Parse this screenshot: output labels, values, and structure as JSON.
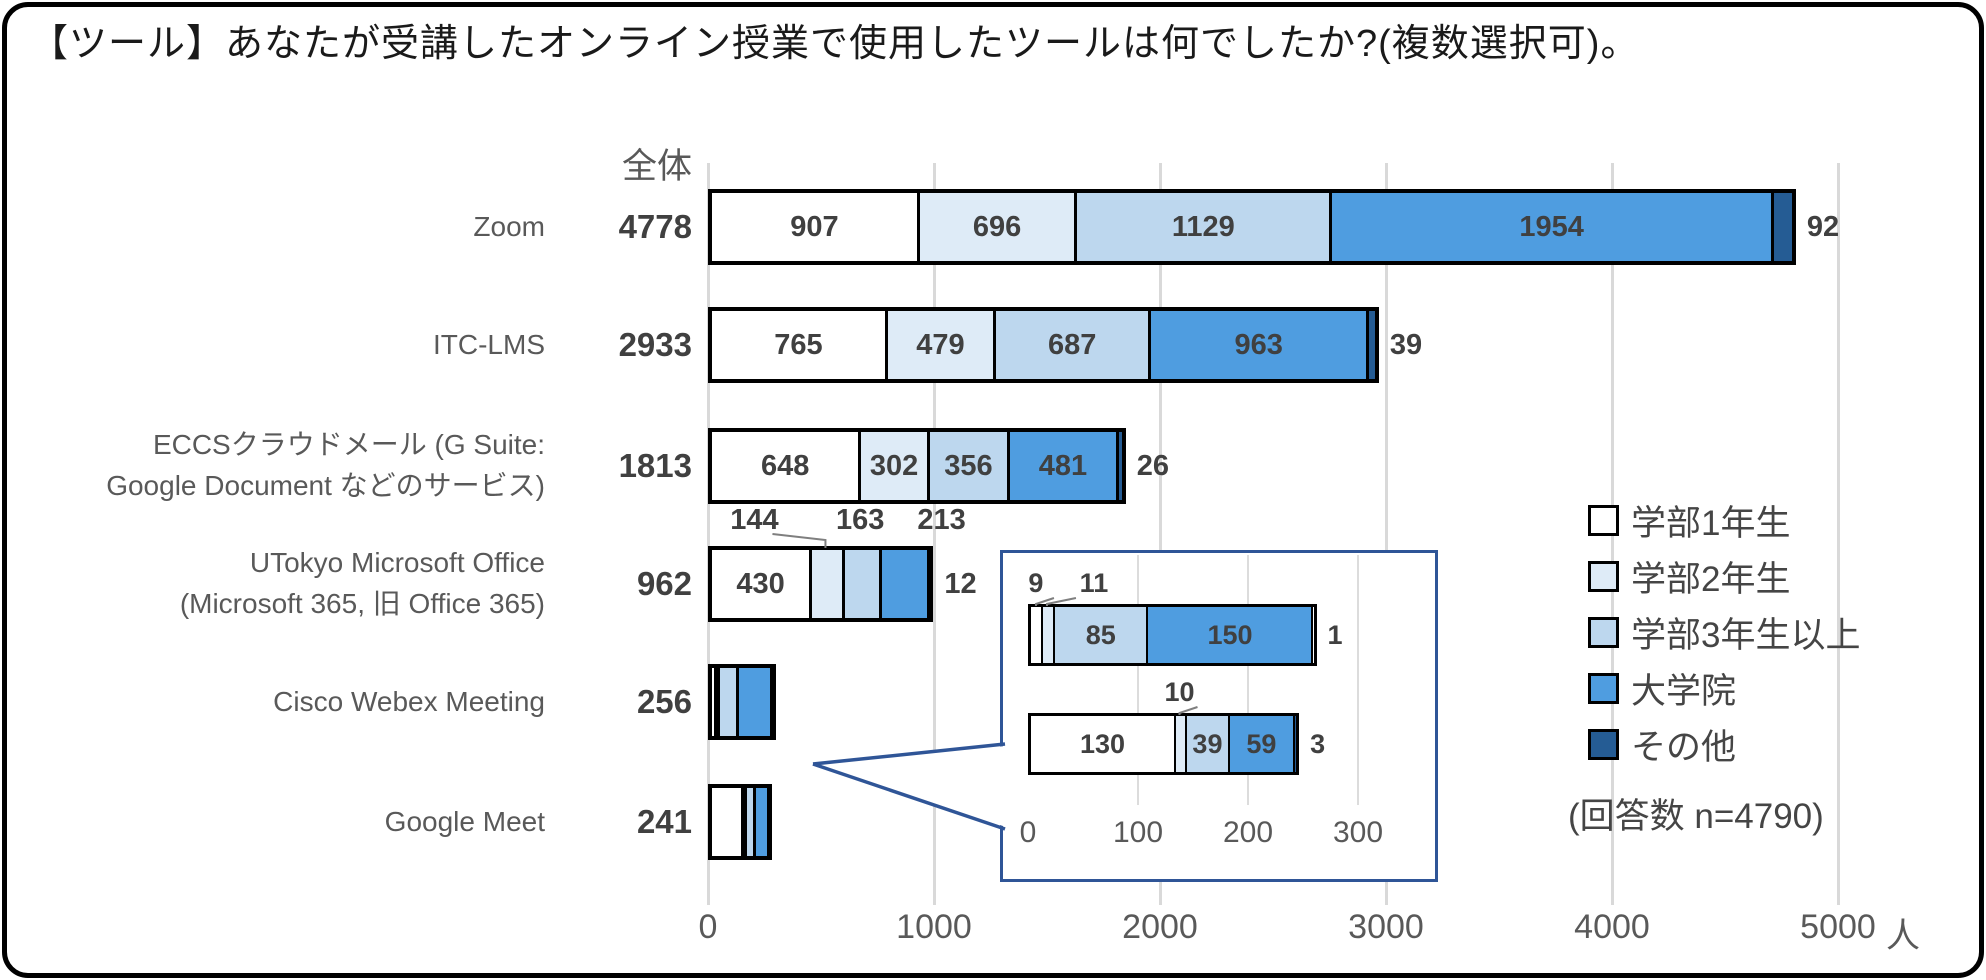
{
  "title": "【ツール】あなたが受講したオンライン授業で使用したツールは何でしたか?(複数選択可)。",
  "colors": {
    "series": [
      "#FFFFFF",
      "#DEEBF7",
      "#BDD7EE",
      "#4F9DE0",
      "#255C94"
    ],
    "segment_border": "#000000",
    "gridline": "#D9D9D9",
    "axis_text": "#595959",
    "value_text": "#404040",
    "inset_border": "#2F5597",
    "background": "#FFFFFF"
  },
  "chart_data": {
    "type": "bar",
    "stacked": true,
    "orientation": "horizontal",
    "title": "【ツール】あなたが受講したオンライン授業で使用したツールは何でしたか?(複数選択可)。",
    "total_header": "全体",
    "unit": "人",
    "xlim": [
      0,
      5000
    ],
    "x_ticks": [
      0,
      1000,
      2000,
      3000,
      4000,
      5000
    ],
    "grid": true,
    "series_names": [
      "学部1年生",
      "学部2年生",
      "学部3年生以上",
      "大学院",
      "その他"
    ],
    "rows": [
      {
        "key": "zoom",
        "label_lines": [
          "Zoom"
        ],
        "total": 4778,
        "values": [
          907,
          696,
          1129,
          1954,
          92
        ],
        "placements": [
          "in",
          "in",
          "in",
          "in",
          "out"
        ],
        "dx": [
          0,
          0,
          0,
          0,
          0
        ],
        "leaders": [
          false,
          false,
          false,
          false,
          false
        ]
      },
      {
        "key": "itc-lms",
        "label_lines": [
          "ITC-LMS"
        ],
        "total": 2933,
        "values": [
          765,
          479,
          687,
          963,
          39
        ],
        "placements": [
          "in",
          "in",
          "in",
          "in",
          "out"
        ],
        "dx": [
          0,
          0,
          0,
          0,
          0
        ],
        "leaders": [
          false,
          false,
          false,
          false,
          false
        ]
      },
      {
        "key": "eccs-cloud-mail",
        "label_lines": [
          "ECCSクラウドメール (G Suite:",
          "Google Document などのサービス)"
        ],
        "total": 1813,
        "values": [
          648,
          302,
          356,
          481,
          26
        ],
        "placements": [
          "in",
          "in",
          "in",
          "in",
          "out"
        ],
        "dx": [
          0,
          0,
          0,
          0,
          0
        ],
        "leaders": [
          false,
          false,
          false,
          false,
          false
        ]
      },
      {
        "key": "utokyo-microsoft-office",
        "label_lines": [
          "UTokyo Microsoft Office",
          "(Microsoft 365, 旧 Office 365)"
        ],
        "total": 962,
        "values": [
          430,
          144,
          163,
          213,
          12
        ],
        "placements": [
          "in",
          "above",
          "above",
          "above",
          "out"
        ],
        "dx": [
          0,
          -71,
          0,
          39,
          0
        ],
        "leaders": [
          false,
          true,
          false,
          false,
          false
        ]
      },
      {
        "key": "cisco-webex-meeting",
        "label_lines": [
          "Cisco Webex Meeting"
        ],
        "total": 256,
        "values": [
          9,
          11,
          85,
          150,
          1
        ],
        "placements": [
          "none",
          "none",
          "none",
          "none",
          "none"
        ],
        "dx": [
          0,
          0,
          0,
          0,
          0
        ],
        "leaders": [
          false,
          false,
          false,
          false,
          false
        ]
      },
      {
        "key": "google-meet",
        "label_lines": [
          "Google Meet"
        ],
        "total": 241,
        "values": [
          130,
          10,
          39,
          59,
          3
        ],
        "placements": [
          "none",
          "none",
          "none",
          "none",
          "none"
        ],
        "dx": [
          0,
          0,
          0,
          0,
          0
        ],
        "leaders": [
          false,
          false,
          false,
          false,
          false
        ]
      }
    ],
    "legend": {
      "position": "right",
      "entries": [
        "学部1年生",
        "学部2年生",
        "学部3年生以上",
        "大学院",
        "その他"
      ],
      "note": "(回答数 n=4790)"
    },
    "inset": {
      "xlim": [
        0,
        330
      ],
      "x_ticks": [
        0,
        100,
        200,
        300
      ],
      "rows": [
        {
          "key": "cisco-webex-meeting-detail",
          "values": [
            9,
            11,
            85,
            150,
            1
          ],
          "placements": [
            "above",
            "above",
            "in",
            "in",
            "out"
          ],
          "dx": [
            0,
            47,
            0,
            0,
            0
          ],
          "leaders": [
            true,
            true,
            false,
            false,
            false
          ]
        },
        {
          "key": "google-meet-detail",
          "values": [
            130,
            10,
            39,
            59,
            3
          ],
          "placements": [
            "in",
            "above",
            "in",
            "in",
            "out"
          ],
          "dx": [
            0,
            0,
            0,
            0,
            0
          ],
          "leaders": [
            false,
            true,
            false,
            false,
            false
          ]
        }
      ]
    }
  }
}
